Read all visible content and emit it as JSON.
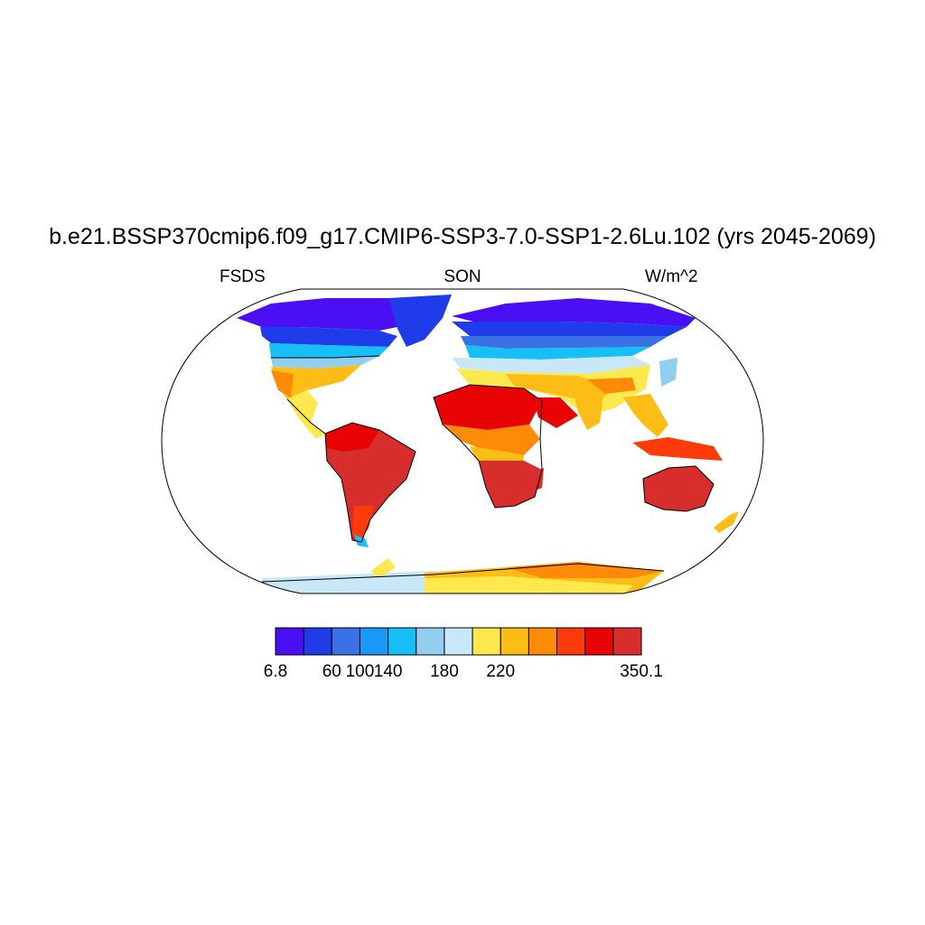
{
  "title": "b.e21.BSSP370cmip6.f09_g17.CMIP6-SSP3-7.0-SSP1-2.6Lu.102 (yrs 2045-2069)",
  "subtitle_left": "FSDS",
  "subtitle_center": "SON",
  "subtitle_right": "W/m^2",
  "colorbar": {
    "colors": [
      "#4a0ff3",
      "#1f3bea",
      "#3a72e6",
      "#1a98f7",
      "#16c0f7",
      "#91cef0",
      "#c8e7f7",
      "#fde94e",
      "#fcbd16",
      "#fd8a08",
      "#fd3b0a",
      "#e80404",
      "#d72d2d"
    ],
    "labels": [
      "6.8",
      "60",
      "100",
      "140",
      "180",
      "220",
      "350.1"
    ]
  },
  "map_data": {
    "projection": "Robinson",
    "variable": "FSDS",
    "season": "SON",
    "units": "W/m^2"
  }
}
